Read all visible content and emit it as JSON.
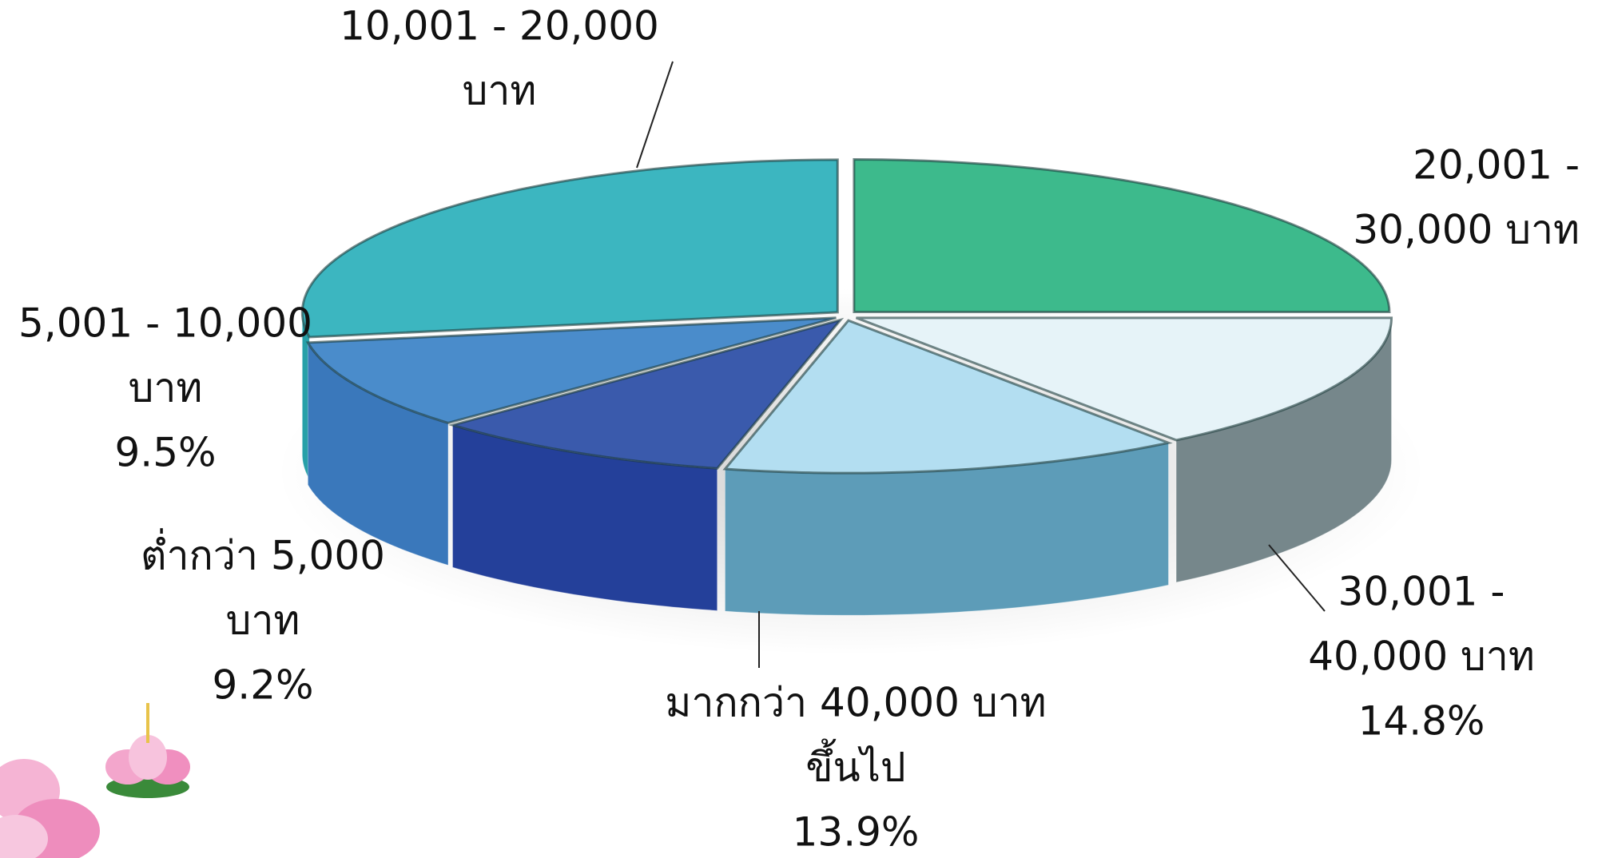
{
  "chart_data": {
    "type": "pie3d",
    "categories": [
      [
        "20,001 -",
        "30,000 บาท"
      ],
      [
        "30,001 -",
        "40,000 บาท"
      ],
      [
        "มากกว่า 40,000 บาท",
        "ขึ้นไป"
      ],
      [
        "ต่ำกว่า 5,000",
        "บาท"
      ],
      [
        "5,001 - 10,000",
        "บาท"
      ],
      [
        "10,001 - 20,000",
        "บาท"
      ]
    ],
    "values": [
      25.0,
      14.8,
      13.9,
      9.2,
      9.5,
      27.6
    ],
    "value_labels": [
      null,
      "14.8%",
      "13.9%",
      "9.2%",
      "9.5%",
      null
    ],
    "colors": [
      "#3dba8c",
      "#e6f3f8",
      "#b3def1",
      "#3a5aac",
      "#4a8ccb",
      "#3cb6c0"
    ],
    "wall_colors": [
      "#2a9a70",
      "#76878b",
      "#5d9cb8",
      "#24409a",
      "#3a78bb",
      "#27a0a8"
    ]
  }
}
